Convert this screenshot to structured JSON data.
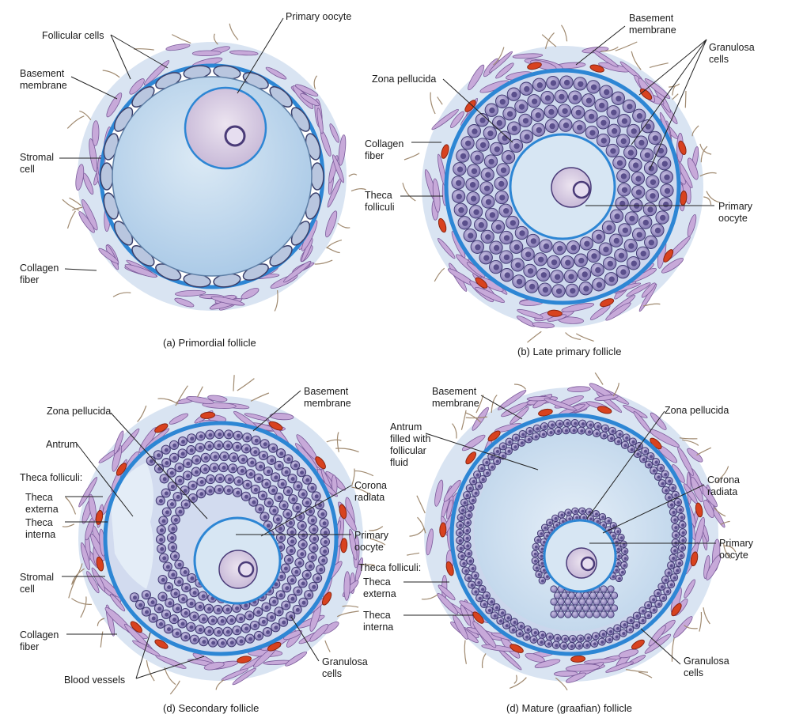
{
  "panels": [
    {
      "caption": "(a) Primordial follicle",
      "labels": {
        "follicular_cells": "Follicular cells",
        "primary_oocyte": "Primary oocyte",
        "basement_membrane": [
          "Basement",
          "membrane"
        ],
        "stromal_cell": [
          "Stromal",
          "cell"
        ],
        "collagen_fiber": [
          "Collagen",
          "fiber"
        ]
      }
    },
    {
      "caption": "(b) Late primary follicle",
      "labels": {
        "basement_membrane": [
          "Basement",
          "membrane"
        ],
        "granulosa_cells": [
          "Granulosa",
          "cells"
        ],
        "zona_pellucida": "Zona pellucida",
        "collagen_fiber": [
          "Collagen",
          "fiber"
        ],
        "theca_folliculi": [
          "Theca",
          "folliculi"
        ],
        "primary_oocyte": [
          "Primary",
          "oocyte"
        ]
      }
    },
    {
      "caption": "(d) Secondary follicle",
      "labels": {
        "basement_membrane": [
          "Basement",
          "membrane"
        ],
        "zona_pellucida": "Zona pellucida",
        "antrum": "Antrum",
        "theca_folliculi": "Theca folliculi:",
        "theca_externa": [
          "Theca",
          "externa"
        ],
        "theca_interna": [
          "Theca",
          "interna"
        ],
        "corona_radiata": [
          "Corona",
          "radiata"
        ],
        "primary_oocyte": [
          "Primary",
          "oocyte"
        ],
        "stromal_cell": [
          "Stromal",
          "cell"
        ],
        "collagen_fiber": [
          "Collagen",
          "fiber"
        ],
        "blood_vessels": "Blood vessels",
        "granulosa_cells": [
          "Granulosa",
          "cells"
        ]
      }
    },
    {
      "caption": "(d) Mature (graafian) follicle",
      "labels": {
        "basement_membrane": [
          "Basement",
          "membrane"
        ],
        "zona_pellucida": "Zona pellucida",
        "antrum": [
          "Antrum",
          "filled with",
          "follicular",
          "fluid"
        ],
        "corona_radiata": [
          "Corona",
          "radiata"
        ],
        "primary_oocyte": [
          "Primary",
          "oocyte"
        ],
        "theca_folliculi": "Theca folliculi:",
        "theca_externa": [
          "Theca",
          "externa"
        ],
        "theca_interna": [
          "Theca",
          "interna"
        ],
        "granulosa_cells": [
          "Granulosa",
          "cells"
        ]
      }
    }
  ],
  "colors": {
    "basement_membrane": "#2d86d4",
    "oocyte_fill": "#c9dff0",
    "nucleus_fill": "#dcd0e6",
    "granulosa_fill": "#9d93c4",
    "granulosa_stroke": "#3c356e",
    "stroma": "#c7a9d9",
    "blood_vessel": "#d8421f",
    "collagen": "#a08a70"
  }
}
